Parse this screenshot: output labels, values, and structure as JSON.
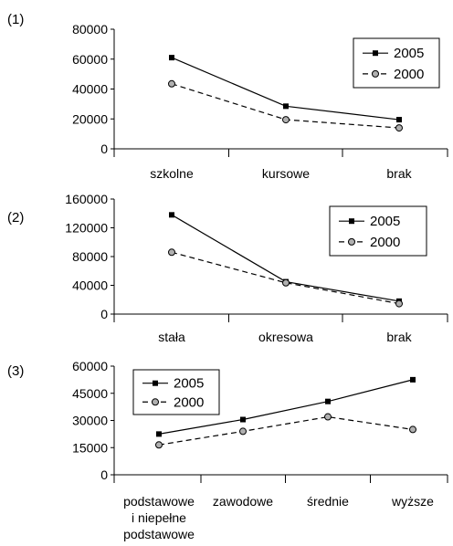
{
  "chart_data": [
    {
      "type": "line",
      "panel_label": "(1)",
      "categories": [
        "szkolne",
        "kursowe",
        "brak"
      ],
      "ylim": [
        0,
        80000
      ],
      "yticks": [
        "80000",
        "60000",
        "40000",
        "20000",
        "0"
      ],
      "legend_position": "top-right",
      "series": [
        {
          "name": "2005",
          "values": [
            61000,
            28500,
            19500
          ]
        },
        {
          "name": "2000",
          "values": [
            43500,
            19500,
            14000
          ]
        }
      ]
    },
    {
      "type": "line",
      "panel_label": "(2)",
      "categories": [
        "stała",
        "okresowa",
        "brak"
      ],
      "ylim": [
        0,
        160000
      ],
      "yticks": [
        "160000",
        "120000",
        "80000",
        "40000",
        "0"
      ],
      "legend_position": "top-right",
      "series": [
        {
          "name": "2005",
          "values": [
            138000,
            45000,
            18000
          ]
        },
        {
          "name": "2000",
          "values": [
            86000,
            43500,
            14500
          ]
        }
      ]
    },
    {
      "type": "line",
      "panel_label": "(3)",
      "categories": [
        "podstawowe i niepełne podstawowe",
        "zawodowe",
        "średnie",
        "wyższe"
      ],
      "ylim": [
        0,
        60000
      ],
      "yticks": [
        "60000",
        "45000",
        "30000",
        "15000",
        "0"
      ],
      "legend_position": "top-left",
      "series": [
        {
          "name": "2005",
          "values": [
            22500,
            30500,
            40500,
            52500
          ]
        },
        {
          "name": "2000",
          "values": [
            16500,
            24000,
            32000,
            25000
          ]
        }
      ]
    }
  ]
}
